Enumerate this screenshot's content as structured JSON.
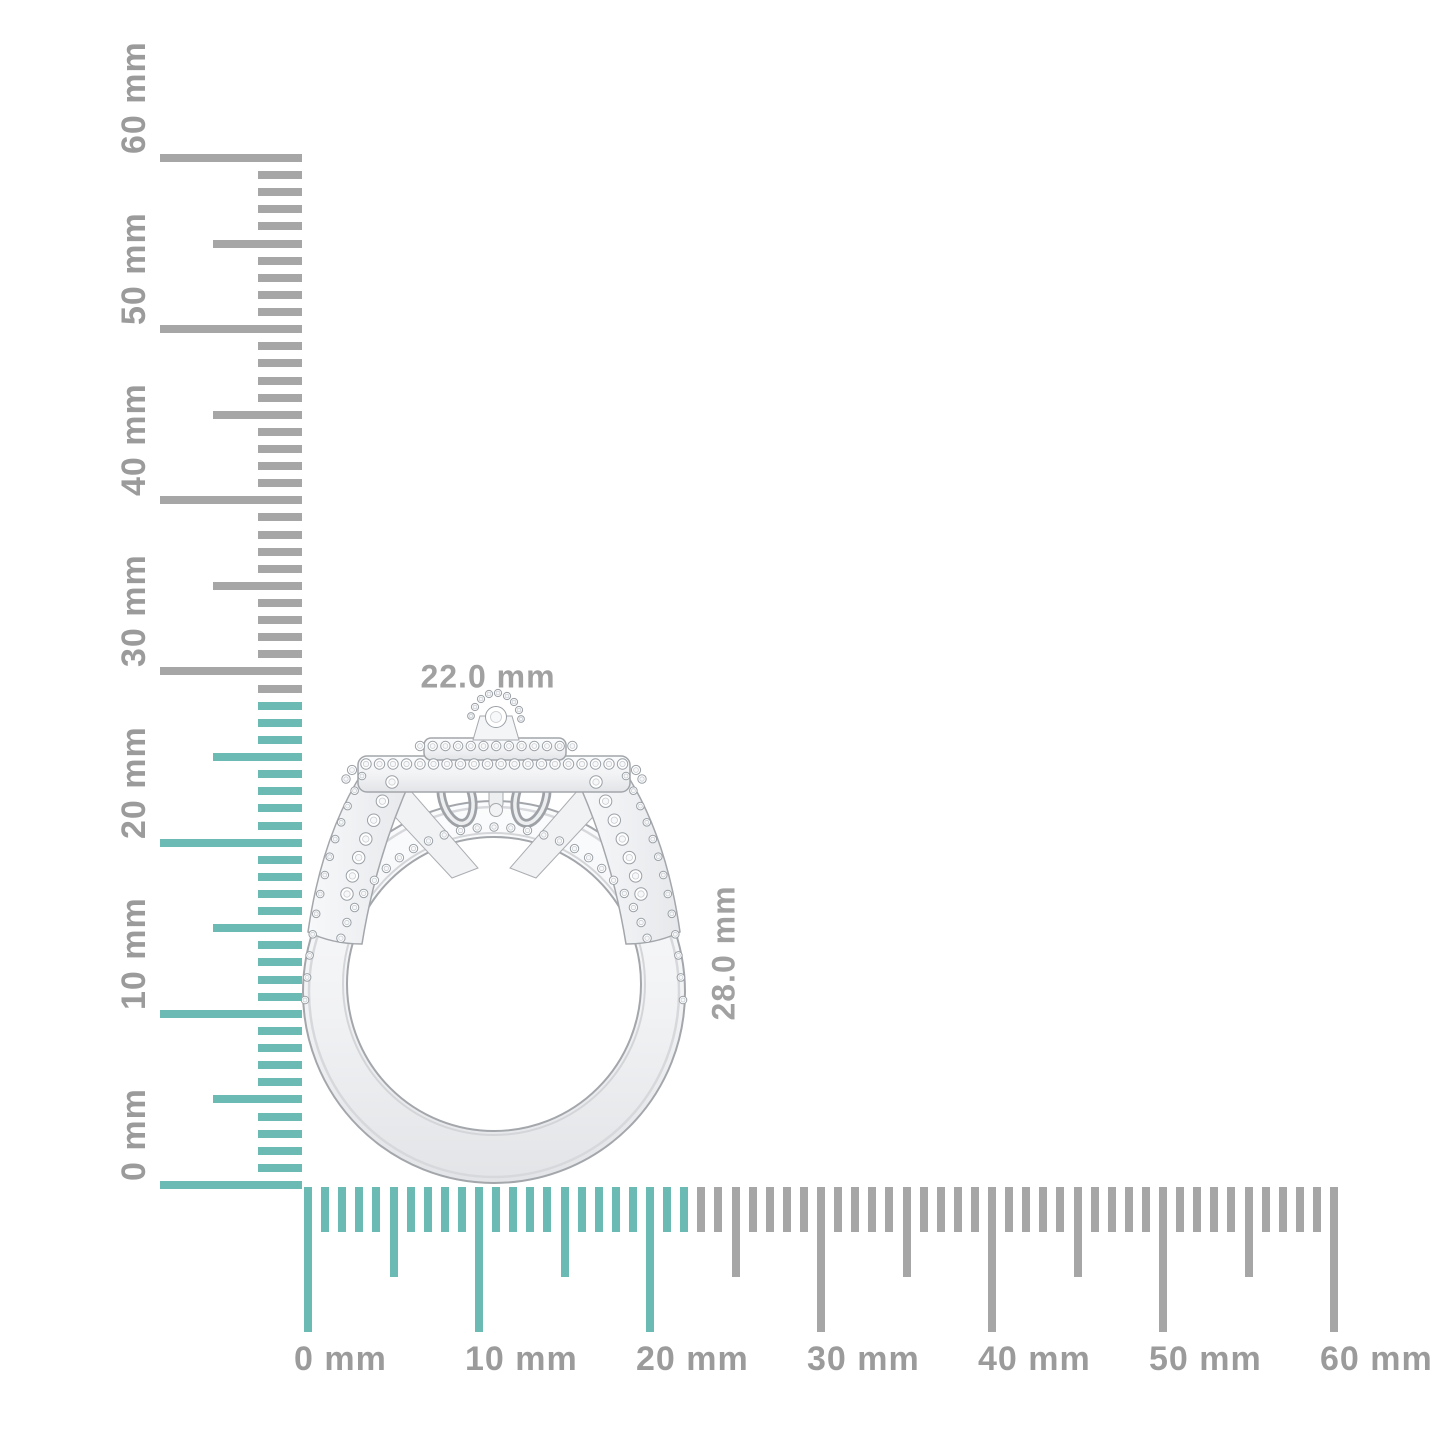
{
  "subject": "diamond double-halo engagement ring, side profile view",
  "annotations": {
    "width_label": "22.0 mm",
    "height_label": "28.0 mm"
  },
  "rulers": {
    "unit": "mm",
    "colors": {
      "highlight": "#6bbab4",
      "tick": "#a6a6a6",
      "label": "#9b9b9b",
      "annotation": "#a1a1a1"
    },
    "vertical": {
      "axis": "object height",
      "min_mm": 0,
      "max_mm": 60,
      "minor_step_mm": 1,
      "medium_step_mm": 5,
      "major_step_mm": 10,
      "highlight_span_mm": 28,
      "labels": [
        "0 mm",
        "10 mm",
        "20 mm",
        "30 mm",
        "40 mm",
        "50 mm",
        "60 mm"
      ]
    },
    "horizontal": {
      "axis": "object width",
      "min_mm": 0,
      "max_mm": 60,
      "minor_step_mm": 1,
      "medium_step_mm": 5,
      "major_step_mm": 10,
      "highlight_span_mm": 22,
      "labels": [
        "0 mm",
        "10 mm",
        "20 mm",
        "30 mm",
        "40 mm",
        "50 mm",
        "60 mm"
      ]
    }
  }
}
